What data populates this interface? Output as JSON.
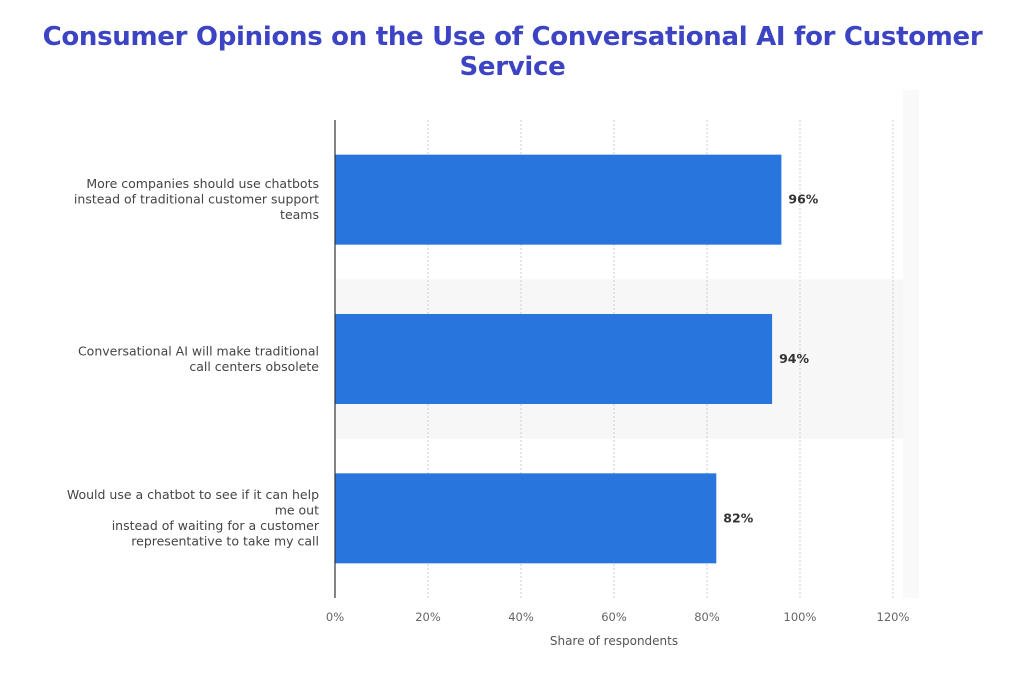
{
  "chart_data": {
    "type": "bar",
    "orientation": "horizontal",
    "title": "Consumer Opinions on the Use of Conversational AI for Customer Service",
    "categories": [
      [
        "More companies should use chatbots",
        "instead of traditional customer support",
        "teams"
      ],
      [
        "Conversational AI will make traditional",
        "call centers obsolete"
      ],
      [
        "Would use a chatbot to see if it can help",
        "me out",
        "instead of waiting for a customer",
        "representative to take my call"
      ]
    ],
    "values": [
      96,
      94,
      82
    ],
    "value_labels": [
      "96%",
      "94%",
      "82%"
    ],
    "xlabel": "Share of respondents",
    "xlim": [
      0,
      120
    ],
    "xticks": [
      0,
      20,
      40,
      60,
      80,
      100,
      120
    ],
    "xtick_labels": [
      "0%",
      "20%",
      "40%",
      "60%",
      "80%",
      "100%",
      "120%"
    ],
    "grid": true,
    "colors": {
      "bar": "#2876dd",
      "title": "#3c44c4",
      "grid": "#cccccc",
      "band": "#f7f7f7"
    }
  }
}
